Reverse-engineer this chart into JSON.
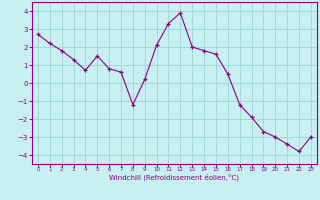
{
  "x": [
    0,
    1,
    2,
    3,
    4,
    5,
    6,
    7,
    8,
    9,
    10,
    11,
    12,
    13,
    14,
    15,
    16,
    17,
    18,
    19,
    20,
    21,
    22,
    23
  ],
  "y": [
    2.7,
    2.2,
    1.8,
    1.3,
    0.7,
    1.5,
    0.8,
    0.6,
    -1.2,
    0.2,
    2.1,
    3.3,
    3.9,
    2.0,
    1.8,
    1.6,
    0.5,
    -1.2,
    -1.9,
    -2.7,
    -3.0,
    -3.4,
    -3.8,
    -3.0
  ],
  "line_color": "#880088",
  "marker": "+",
  "bg_color": "#c8f0f0",
  "grid_color": "#a0d8d8",
  "axis_color": "#880088",
  "tick_color": "#880088",
  "xlabel": "Windchill (Refroidissement éolien,°C)",
  "xlabel_color": "#880088",
  "ylim": [
    -4.5,
    4.5
  ],
  "xlim": [
    -0.5,
    23.5
  ],
  "yticks": [
    -4,
    -3,
    -2,
    -1,
    0,
    1,
    2,
    3,
    4
  ],
  "xticks": [
    0,
    1,
    2,
    3,
    4,
    5,
    6,
    7,
    8,
    9,
    10,
    11,
    12,
    13,
    14,
    15,
    16,
    17,
    18,
    19,
    20,
    21,
    22,
    23
  ]
}
